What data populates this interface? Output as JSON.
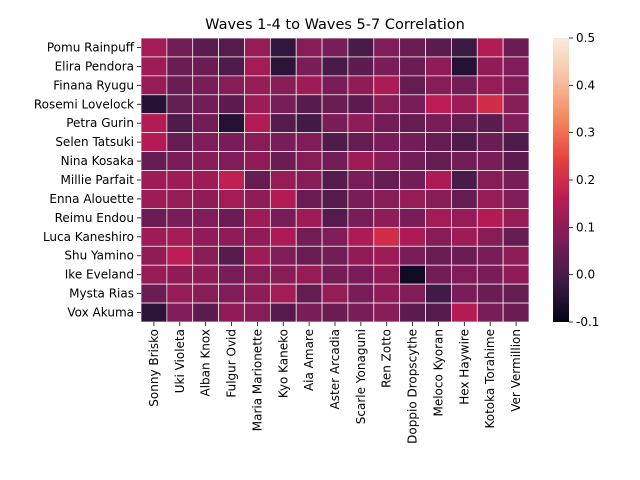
{
  "chart_data": {
    "type": "heatmap",
    "title": "Waves 1-4 to Waves 5-7 Correlation",
    "xlabel": "",
    "ylabel": "",
    "rows": [
      "Pomu Rainpuff",
      "Elira Pendora",
      "Finana Ryugu",
      "Rosemi Lovelock",
      "Petra Gurin",
      "Selen Tatsuki",
      "Nina Kosaka",
      "Millie Parfait",
      "Enna Alouette",
      "Reimu Endou",
      "Luca Kaneshiro",
      "Shu Yamino",
      "Ike Eveland",
      "Mysta Rias",
      "Vox Akuma"
    ],
    "columns": [
      "Sonny Brisko",
      "Uki Violeta",
      "Alban Knox",
      "Fulgur Ovid",
      "Maria Marionette",
      "Kyo Kaneko",
      "Aia Amare",
      "Aster Arcadia",
      "Scarle Yonaguni",
      "Ren Zotto",
      "Doppio Dropscythe",
      "Meloco Kyoran",
      "Hex Haywire",
      "Kotoka Torahime",
      "Ver Vermillion"
    ],
    "values": [
      [
        0.13,
        0.06,
        0.03,
        0.02,
        0.11,
        -0.03,
        0.09,
        0.07,
        0.0,
        0.08,
        0.05,
        0.03,
        -0.02,
        0.15,
        0.05
      ],
      [
        0.12,
        0.05,
        0.05,
        0.01,
        0.13,
        -0.04,
        0.07,
        0.0,
        0.03,
        0.07,
        0.05,
        0.1,
        -0.05,
        0.1,
        0.08
      ],
      [
        0.11,
        0.05,
        0.07,
        0.09,
        0.11,
        0.09,
        0.12,
        0.07,
        0.1,
        0.14,
        0.04,
        0.09,
        0.06,
        0.11,
        0.08
      ],
      [
        -0.05,
        0.04,
        0.06,
        0.03,
        0.12,
        0.07,
        0.02,
        0.05,
        0.03,
        0.09,
        0.07,
        0.16,
        0.12,
        0.2,
        0.09
      ],
      [
        0.15,
        0.01,
        0.06,
        -0.05,
        0.15,
        0.02,
        -0.01,
        0.07,
        0.1,
        0.06,
        0.04,
        0.07,
        0.04,
        0.03,
        0.08
      ],
      [
        0.15,
        0.04,
        0.08,
        0.07,
        0.09,
        0.07,
        0.08,
        0.01,
        0.04,
        0.07,
        0.06,
        0.04,
        0.01,
        0.05,
        0.01
      ],
      [
        0.04,
        0.07,
        0.09,
        0.08,
        0.1,
        0.05,
        0.09,
        0.06,
        0.12,
        0.09,
        0.06,
        0.04,
        0.06,
        0.07,
        0.03
      ],
      [
        0.12,
        0.12,
        0.12,
        0.17,
        0.04,
        0.11,
        0.09,
        0.02,
        0.07,
        0.04,
        0.06,
        0.14,
        0.0,
        0.09,
        0.07
      ],
      [
        0.12,
        0.11,
        0.1,
        0.13,
        0.1,
        0.15,
        0.05,
        0.02,
        0.07,
        0.09,
        0.11,
        0.09,
        0.04,
        0.11,
        0.08
      ],
      [
        0.05,
        0.07,
        0.08,
        0.05,
        0.12,
        0.07,
        0.12,
        0.02,
        0.07,
        0.1,
        0.07,
        0.13,
        0.11,
        0.15,
        0.11
      ],
      [
        0.12,
        0.13,
        0.1,
        0.1,
        0.1,
        0.14,
        0.06,
        0.08,
        0.14,
        0.2,
        0.14,
        0.09,
        0.12,
        0.09,
        0.04
      ],
      [
        0.1,
        0.16,
        0.09,
        0.02,
        0.12,
        0.08,
        0.05,
        0.06,
        0.1,
        0.12,
        0.07,
        0.05,
        0.05,
        0.07,
        0.1
      ],
      [
        0.11,
        0.1,
        0.1,
        0.07,
        0.09,
        0.09,
        0.11,
        0.06,
        0.07,
        0.1,
        -0.08,
        0.06,
        0.08,
        0.07,
        0.1
      ],
      [
        0.05,
        0.11,
        0.09,
        0.08,
        0.1,
        0.13,
        0.04,
        0.11,
        0.07,
        0.1,
        0.08,
        -0.01,
        0.07,
        0.05,
        0.04
      ],
      [
        -0.04,
        0.08,
        0.03,
        0.1,
        0.09,
        0.02,
        0.07,
        0.05,
        0.07,
        0.09,
        0.03,
        0.02,
        0.15,
        0.07,
        0.05
      ]
    ],
    "colorbar": {
      "min": -0.1,
      "max": 0.5,
      "ticks": [
        "-0.1",
        "0.0",
        "0.1",
        "0.2",
        "0.3",
        "0.4",
        "0.5"
      ],
      "colormap": "rocket",
      "stops": [
        "#03051a",
        "#3e1a45",
        "#7a1d58",
        "#b81b54",
        "#e83f3f",
        "#f4875e",
        "#f7c0a2",
        "#faebdd"
      ]
    },
    "grid": false,
    "legend": "colorbar-right"
  }
}
